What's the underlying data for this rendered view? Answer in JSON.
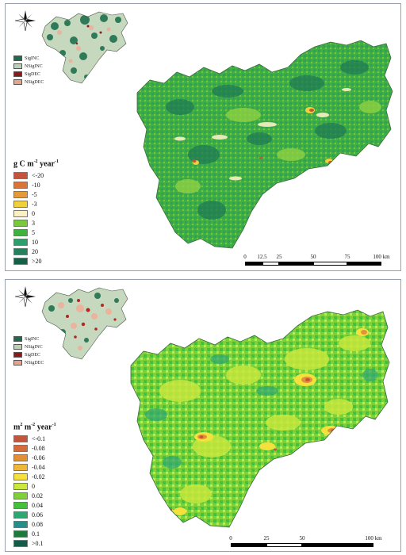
{
  "panels": [
    {
      "id": "top",
      "category_legend": [
        {
          "label": "SigINC",
          "color": "#1f6b4e"
        },
        {
          "label": "NSigINC",
          "color": "#b9d3b4"
        },
        {
          "label": "SigDEC",
          "color": "#8b1a1a"
        },
        {
          "label": "NSigDEC",
          "color": "#e3a58c"
        }
      ],
      "value_legend": {
        "title_main": "g C m",
        "title_sup1": "-2",
        "title_mid": " year",
        "title_sup2": "-1",
        "items": [
          {
            "label": "<-20",
            "color": "#c2553b"
          },
          {
            "label": "-10",
            "color": "#d9743a"
          },
          {
            "label": "-5",
            "color": "#e59a3a"
          },
          {
            "label": "-3",
            "color": "#f2d03d"
          },
          {
            "label": "0",
            "color": "#fbefc4"
          },
          {
            "label": "3",
            "color": "#77c93d"
          },
          {
            "label": "5",
            "color": "#3fb23b"
          },
          {
            "label": "10",
            "color": "#2e9e6a"
          },
          {
            "label": "20",
            "color": "#26805e"
          },
          {
            "label": ">20",
            "color": "#166048"
          }
        ]
      },
      "scalebar": {
        "ticks": [
          "0",
          "12.5",
          "25",
          "50",
          "75",
          "100 km"
        ]
      }
    },
    {
      "id": "bottom",
      "category_legend": [
        {
          "label": "SigINC",
          "color": "#1f6b4e"
        },
        {
          "label": "NSigINC",
          "color": "#b9d3b4"
        },
        {
          "label": "SigDEC",
          "color": "#8b1a1a"
        },
        {
          "label": "NSigDEC",
          "color": "#e3a58c"
        }
      ],
      "value_legend": {
        "title_main": "m",
        "title_sup1": "2",
        "title_mid": " m",
        "title_sup2": "-2",
        "title_end": " year",
        "title_sup3": "-1",
        "items": [
          {
            "label": "<-0.1",
            "color": "#c2553b"
          },
          {
            "label": "-0.08",
            "color": "#d46b3a"
          },
          {
            "label": "-0.06",
            "color": "#e3903a"
          },
          {
            "label": "-0.04",
            "color": "#efb63c"
          },
          {
            "label": "-0.02",
            "color": "#f4e13e"
          },
          {
            "label": "0",
            "color": "#c8e83e"
          },
          {
            "label": "0.02",
            "color": "#7fd13c"
          },
          {
            "label": "0.04",
            "color": "#45c03b"
          },
          {
            "label": "0.06",
            "color": "#2ea774"
          },
          {
            "label": "0.08",
            "color": "#2a8d8c"
          },
          {
            "label": "0.1",
            "color": "#1c7a3a"
          },
          {
            "label": ">0.1",
            "color": "#145c4a"
          }
        ]
      },
      "scalebar": {
        "ticks": [
          "0",
          "25",
          "50",
          "100 km"
        ]
      }
    }
  ]
}
